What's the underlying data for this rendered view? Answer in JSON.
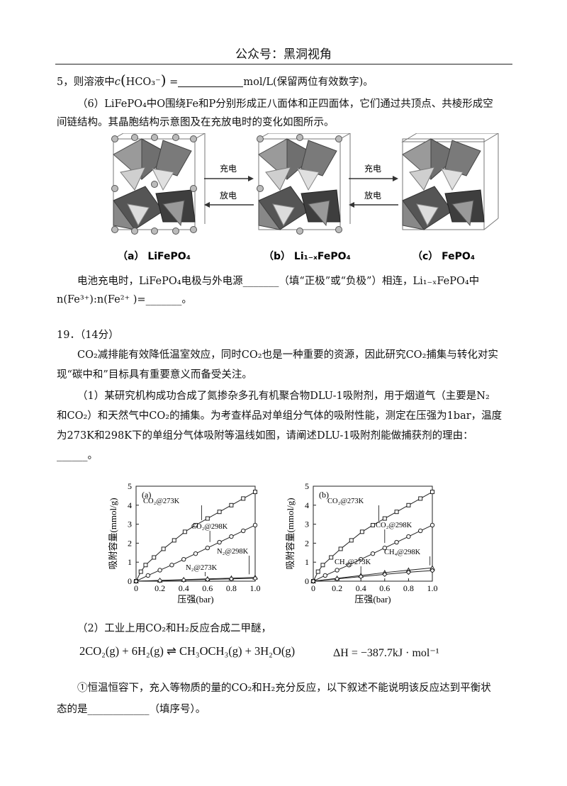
{
  "header": {
    "watermark": "公众号：黑洞视角"
  },
  "q5_tail": {
    "prefix": "5，则溶液中",
    "conc_symbol": "c",
    "ion": "HCO₃⁻",
    "eq": " =",
    "suffix": "mol/L(保留两位有效数字)。"
  },
  "q6": {
    "line1": "（6）LiFePO₄中O围绕Fe和P分别形成正八面体和正四面体，它们通过共顶点、共棱形成空",
    "line2": "间链结构。其晶胞结构示意图及在充放电时的变化如图所示。",
    "figure": {
      "arrow_charge": "充电",
      "arrow_discharge": "放电",
      "caption_a": "（a） LiFePO₄",
      "caption_b": "（b） Li₁₋ₓFePO₄",
      "caption_c": "（c） FePO₄"
    },
    "question_line1": "电池充电时，LiFePO₄电极与外电源_______（填“正极”或“负极”）相连，Li₁₋ₓFePO₄中",
    "question_line2": "n(Fe³⁺):n(Fe²⁺ )=_______。"
  },
  "q19": {
    "title": "19．（14分）",
    "intro1": "CO₂减排能有效降低温室效应，同时CO₂也是一种重要的资源，因此研究CO₂捕集与转化对实",
    "intro2": "现“碳中和”目标具有重要意义而备受关注。",
    "part1_line1": "（1）某研究机构成功合成了氮掺杂多孔有机聚合物DLU-1吸附剂，用于烟道气（主要是N₂",
    "part1_line2": "和CO₂）和天然气中CO₂的捕集。为考查样品对单组分气体的吸附性能，测定在压强为1bar，温度",
    "part1_line3": "为273K和298K下的单组分气体吸附等温线如图，请阐述DLU-1吸附剂能做捕获剂的理由：",
    "part1_line4": "______。",
    "part2_line1": "（2）工业上用CO₂和H₂反应合成二甲醚，",
    "reaction": "2CO₂(g) + 6H₂(g) ⇌ CH₃OCH₃(g) + 3H₂O(g)",
    "enthalpy": "ΔH = −387.7kJ · mol⁻¹",
    "part2_q1_line1": "①恒温恒容下，充入等物质的量的CO₂和H₂充分反应，以下叙述不能说明该反应达到平衡状",
    "part2_q1_line2": "态的是____________（填序号）。"
  },
  "chart_data": [
    {
      "type": "line",
      "panel_label": "(a)",
      "xlabel": "压强(bar)",
      "ylabel": "吸附容量(mmol/g)",
      "xlim": [
        0,
        1.0
      ],
      "ylim": [
        0,
        5
      ],
      "xticks": [
        "0",
        "0.2",
        "0.4",
        "0.6",
        "0.8",
        "1.0"
      ],
      "yticks": [
        "0",
        "1",
        "2",
        "3",
        "4",
        "5"
      ],
      "series": [
        {
          "name": "CO₂@273K",
          "marker": "square",
          "x": [
            0,
            0.04,
            0.08,
            0.15,
            0.23,
            0.32,
            0.41,
            0.5,
            0.6,
            0.7,
            0.8,
            0.9,
            1.0
          ],
          "y": [
            0,
            0.5,
            0.85,
            1.25,
            1.7,
            2.15,
            2.6,
            2.95,
            3.3,
            3.65,
            4.0,
            4.35,
            4.7
          ]
        },
        {
          "name": "CO₂@298K",
          "marker": "circle",
          "x": [
            0,
            0.1,
            0.2,
            0.3,
            0.4,
            0.5,
            0.6,
            0.7,
            0.8,
            0.9,
            1.0
          ],
          "y": [
            0,
            0.3,
            0.58,
            0.85,
            1.15,
            1.45,
            1.75,
            2.05,
            2.35,
            2.65,
            2.95
          ]
        },
        {
          "name": "N₂@298K",
          "marker": "triangle",
          "x": [
            0,
            0.2,
            0.4,
            0.6,
            0.8,
            1.0
          ],
          "y": [
            0,
            0.04,
            0.08,
            0.12,
            0.16,
            0.2
          ]
        },
        {
          "name": "N₂@273K",
          "marker": "diamond",
          "x": [
            0,
            0.2,
            0.4,
            0.6,
            0.8,
            1.0
          ],
          "y": [
            0,
            0.03,
            0.06,
            0.09,
            0.12,
            0.15
          ]
        }
      ]
    },
    {
      "type": "line",
      "panel_label": "(b)",
      "xlabel": "压强(bar)",
      "ylabel": "吸附容量(mmol/g)",
      "xlim": [
        0,
        1.0
      ],
      "ylim": [
        0,
        5
      ],
      "xticks": [
        "0",
        "0.2",
        "0.4",
        "0.6",
        "0.8",
        "1.0"
      ],
      "yticks": [
        "0",
        "1",
        "2",
        "3",
        "4",
        "5"
      ],
      "series": [
        {
          "name": "CO₂@273K",
          "marker": "square",
          "x": [
            0,
            0.04,
            0.08,
            0.15,
            0.23,
            0.32,
            0.41,
            0.5,
            0.6,
            0.7,
            0.8,
            0.9,
            1.0
          ],
          "y": [
            0,
            0.5,
            0.85,
            1.25,
            1.7,
            2.15,
            2.6,
            2.95,
            3.3,
            3.65,
            4.0,
            4.35,
            4.7
          ]
        },
        {
          "name": "CO₂@298K",
          "marker": "circle",
          "x": [
            0,
            0.1,
            0.2,
            0.3,
            0.4,
            0.5,
            0.6,
            0.7,
            0.8,
            0.9,
            1.0
          ],
          "y": [
            0,
            0.3,
            0.58,
            0.85,
            1.15,
            1.45,
            1.75,
            2.05,
            2.35,
            2.65,
            2.95
          ]
        },
        {
          "name": "CH₄@298K",
          "marker": "triangle",
          "x": [
            0,
            0.2,
            0.4,
            0.6,
            0.8,
            1.0
          ],
          "y": [
            0,
            0.15,
            0.3,
            0.45,
            0.58,
            0.7
          ]
        },
        {
          "name": "CH₄@273K",
          "marker": "diamond",
          "x": [
            0,
            0.2,
            0.4,
            0.6,
            0.8,
            1.0
          ],
          "y": [
            0,
            0.12,
            0.24,
            0.36,
            0.47,
            0.56
          ]
        }
      ]
    }
  ]
}
